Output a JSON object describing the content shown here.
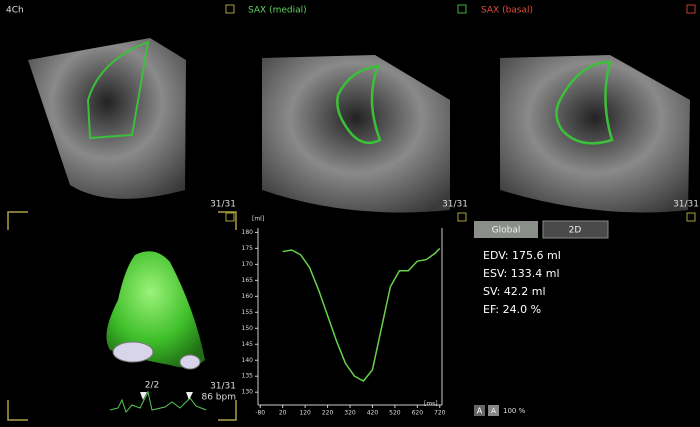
{
  "views": [
    {
      "label": "4Ch",
      "frame": "31/31"
    },
    {
      "label": "SAX (medial)",
      "frame": "31/31"
    },
    {
      "label": "SAX (basal)",
      "frame": "31/31"
    }
  ],
  "model_panel": {
    "cycle": "2/2",
    "frame": "31/31",
    "heart_rate": "86 bpm"
  },
  "buttons": [
    "Global",
    "2D"
  ],
  "results": [
    "EDV: 175.6 ml",
    "ESV: 133.4 ml",
    "SV: 42.2 ml",
    "EF: 24.0 %"
  ],
  "zoom": {
    "buttons": [
      "A",
      "A"
    ],
    "level": "100 %"
  },
  "chart_data": {
    "type": "line",
    "y_label": "[ml]",
    "x_label": "[ms]",
    "x": [
      20,
      60,
      100,
      140,
      180,
      220,
      260,
      300,
      340,
      380,
      420,
      460,
      500,
      540,
      580,
      620,
      660,
      700,
      720
    ],
    "series": [
      {
        "color": "#66d24a",
        "values": [
          174,
          174.5,
          173,
          169,
          162,
          154,
          146,
          139,
          135,
          133.5,
          137,
          150,
          163,
          168,
          168,
          171,
          171.5,
          173.5,
          175
        ]
      }
    ],
    "xlim": [
      -90,
      730
    ],
    "ylim": [
      126,
      182
    ],
    "xticks": [
      -80,
      20,
      120,
      220,
      320,
      420,
      520,
      620,
      720
    ],
    "yticks": [
      130,
      135,
      140,
      145,
      150,
      155,
      160,
      165,
      170,
      175,
      180
    ]
  }
}
